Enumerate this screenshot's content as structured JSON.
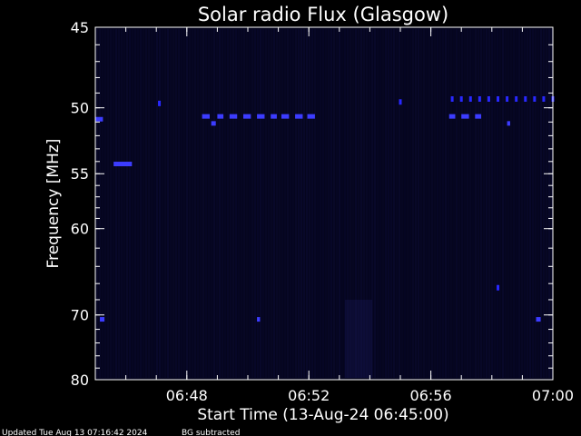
{
  "chart_data": {
    "type": "heatmap",
    "title": "Solar radio Flux (Glasgow)",
    "xlabel": "Start Time (13-Aug-24 06:45:00)",
    "ylabel": "Frequency [MHz]",
    "footer_left": "Updated Tue Aug 13 07:16:42 2024",
    "footer_right": "BG subtracted",
    "x_ticks": [
      {
        "minute": 3,
        "label": "06:48"
      },
      {
        "minute": 7,
        "label": "06:52"
      },
      {
        "minute": 11,
        "label": "06:56"
      },
      {
        "minute": 15,
        "label": "07:00"
      }
    ],
    "y_ticks": [
      {
        "mhz": 45,
        "label": "45"
      },
      {
        "mhz": 50,
        "label": "50"
      },
      {
        "mhz": 55,
        "label": "55"
      },
      {
        "mhz": 60,
        "label": "60"
      },
      {
        "mhz": 70,
        "label": "70"
      },
      {
        "mhz": 80,
        "label": "80"
      }
    ],
    "x_range_minutes": [
      0,
      15
    ],
    "y_range_mhz": [
      45,
      80
    ],
    "y_scale": "reciprocal",
    "colors": {
      "background": "#000000",
      "plot_bg": "#05051e",
      "axis": "#ffffff",
      "signal": "#2828ff",
      "signal_strong": "#3c3cff"
    },
    "bursts": [
      {
        "t0": 0.0,
        "t1": 0.25,
        "mhz": 50.8
      },
      {
        "t0": 0.6,
        "t1": 1.2,
        "mhz": 54.2
      },
      {
        "t0": 0.15,
        "t1": 0.3,
        "mhz": 70.6
      },
      {
        "t0": 3.5,
        "t1": 3.75,
        "mhz": 50.6
      },
      {
        "t0": 3.8,
        "t1": 3.95,
        "mhz": 51.1
      },
      {
        "t0": 4.0,
        "t1": 4.2,
        "mhz": 50.6
      },
      {
        "t0": 4.4,
        "t1": 4.65,
        "mhz": 50.6
      },
      {
        "t0": 4.85,
        "t1": 5.1,
        "mhz": 50.6
      },
      {
        "t0": 5.3,
        "t1": 5.55,
        "mhz": 50.6
      },
      {
        "t0": 5.75,
        "t1": 5.95,
        "mhz": 50.6
      },
      {
        "t0": 6.1,
        "t1": 6.35,
        "mhz": 50.6
      },
      {
        "t0": 6.55,
        "t1": 6.8,
        "mhz": 50.6
      },
      {
        "t0": 6.95,
        "t1": 7.2,
        "mhz": 50.6
      },
      {
        "t0": 5.3,
        "t1": 5.4,
        "mhz": 70.6
      },
      {
        "t0": 11.6,
        "t1": 11.8,
        "mhz": 50.6
      },
      {
        "t0": 12.0,
        "t1": 12.25,
        "mhz": 50.6
      },
      {
        "t0": 12.45,
        "t1": 12.65,
        "mhz": 50.6
      },
      {
        "t0": 13.5,
        "t1": 13.6,
        "mhz": 51.1
      },
      {
        "t0": 14.45,
        "t1": 14.6,
        "mhz": 70.6
      }
    ],
    "comb_ticks": [
      {
        "minute": 11.7,
        "mhz": 49.4
      },
      {
        "minute": 12.0,
        "mhz": 49.4
      },
      {
        "minute": 12.3,
        "mhz": 49.4
      },
      {
        "minute": 12.6,
        "mhz": 49.4
      },
      {
        "minute": 12.9,
        "mhz": 49.4
      },
      {
        "minute": 13.2,
        "mhz": 49.4
      },
      {
        "minute": 13.5,
        "mhz": 49.4
      },
      {
        "minute": 13.8,
        "mhz": 49.4
      },
      {
        "minute": 14.1,
        "mhz": 49.4
      },
      {
        "minute": 14.4,
        "mhz": 49.4
      },
      {
        "minute": 14.7,
        "mhz": 49.4
      },
      {
        "minute": 15.0,
        "mhz": 49.4
      },
      {
        "minute": 2.1,
        "mhz": 49.7
      },
      {
        "minute": 10.0,
        "mhz": 49.6
      },
      {
        "minute": 13.2,
        "mhz": 66.5
      }
    ]
  }
}
